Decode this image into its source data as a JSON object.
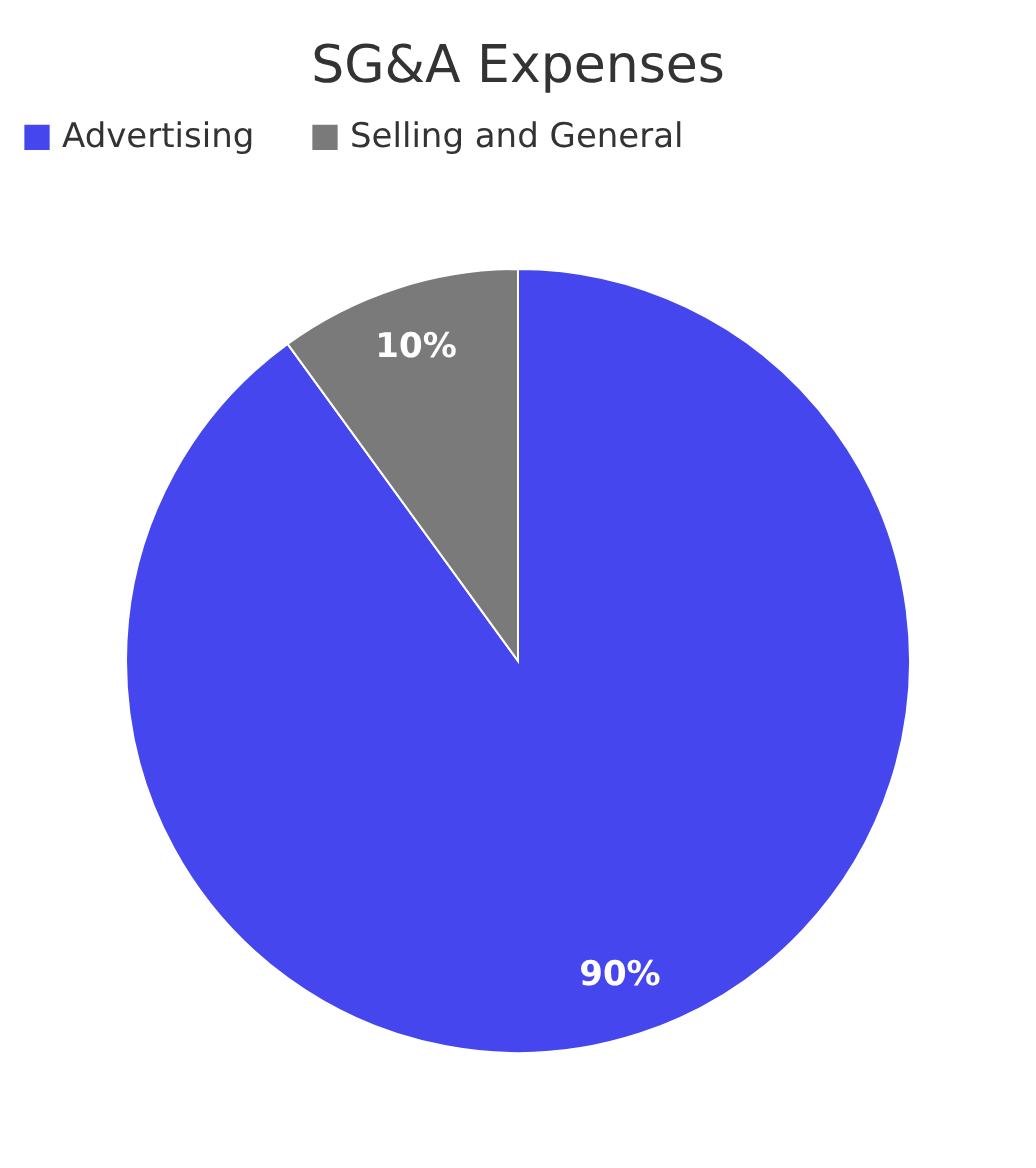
{
  "chart_data": {
    "type": "pie",
    "title": "SG&A Expenses",
    "categories": [
      "Advertising",
      "Selling and General"
    ],
    "values": [
      90,
      10
    ],
    "colors": [
      "#4646ee",
      "#7a7a7a"
    ],
    "value_labels": [
      "90%",
      "10%"
    ],
    "legend": "top"
  }
}
